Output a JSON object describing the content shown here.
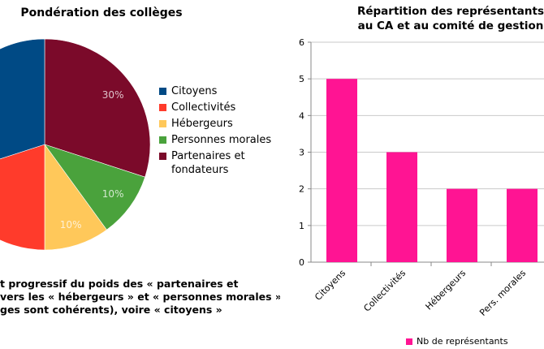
{
  "chart_data": [
    {
      "type": "pie",
      "title": "Pondération des collèges",
      "slices": [
        {
          "label": "Partenaires et fondateurs",
          "value": 30,
          "display": "30%",
          "color": "#7b0a2a"
        },
        {
          "label": "Personnes morales",
          "value": 10,
          "display": "10%",
          "color": "#4aa23c"
        },
        {
          "label": "Hébergeurs",
          "value": 10,
          "display": "10%",
          "color": "#ffc85a"
        },
        {
          "label": "Collectivités",
          "value": 20,
          "display": "",
          "color": "#ff3b2b"
        },
        {
          "label": "Citoyens",
          "value": 30,
          "display": "",
          "color": "#004a85"
        }
      ],
      "legend": [
        "Citoyens",
        "Collectivités",
        "Hébergeurs",
        "Personnes morales",
        "Partenaires et fondateurs"
      ],
      "legend_placement": "right"
    },
    {
      "type": "bar",
      "title": "Répartition des représentants au CA et au comité de gestion",
      "title_lines": [
        "Répartition des représentants",
        "au CA et au comité de gestion"
      ],
      "categories": [
        "Citoyens",
        "Collectivités",
        "Hébergeurs",
        "Pers. morales"
      ],
      "series": [
        {
          "name": "Nb de représentants",
          "values": [
            5,
            3,
            2,
            2
          ],
          "color": "#ff1493"
        }
      ],
      "ylim": [
        0,
        6
      ],
      "yticks": [
        0,
        1,
        2,
        3,
        4,
        5,
        6
      ],
      "grid": true,
      "legend_placement": "bottom"
    }
  ],
  "caption": [
    "t progressif du poids des « partenaires et",
    " vers les « hébergeurs » et « personnes morales »",
    "ges sont cohérents), voire « citoyens »"
  ]
}
